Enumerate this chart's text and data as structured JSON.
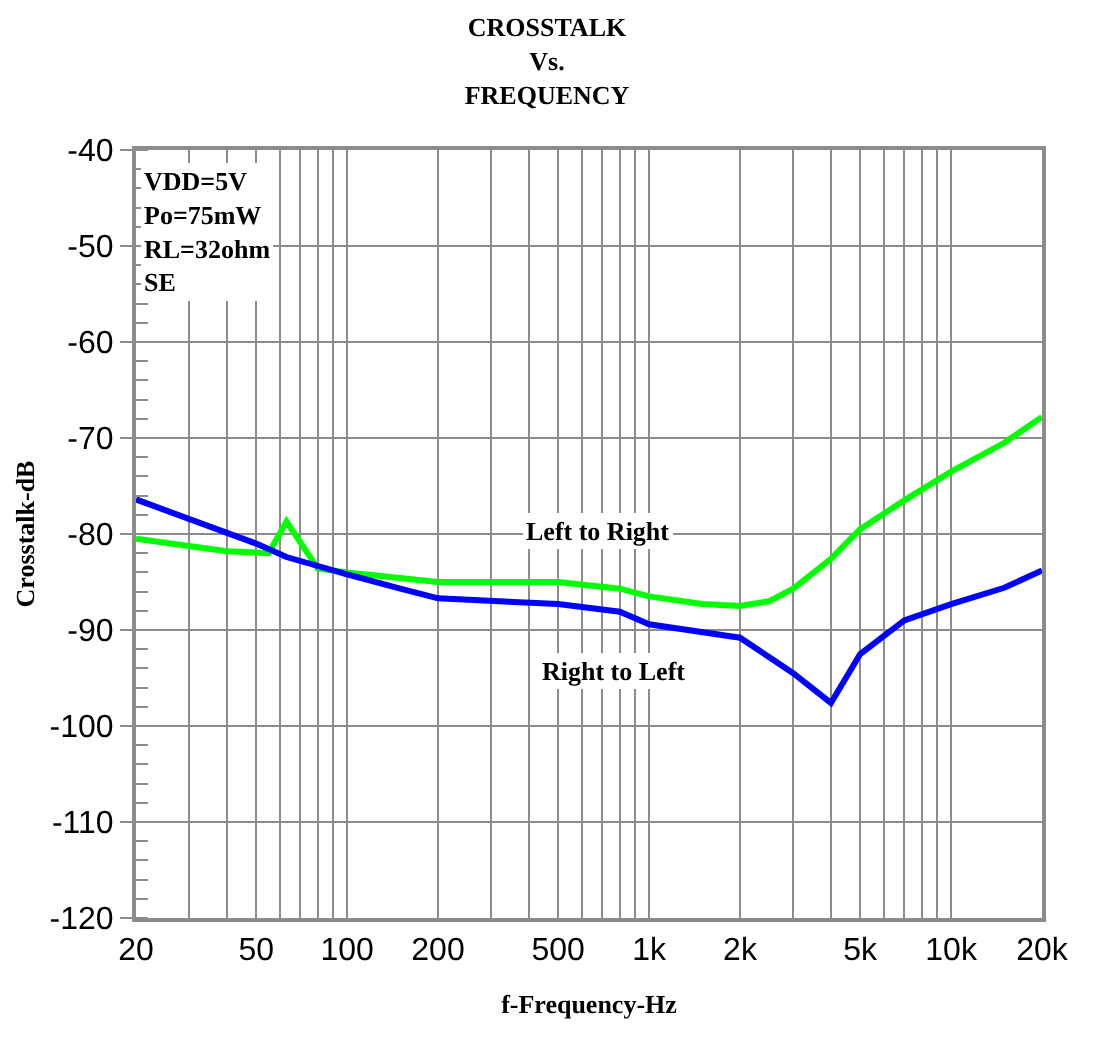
{
  "chart_data": {
    "type": "line",
    "title": "CROSSTALK\nVs.\nFREQUENCY",
    "xlabel": "f-Frequency-Hz",
    "ylabel": "Crosstalk-dB",
    "log": "x",
    "grid": true,
    "marker": "none",
    "line_style": "solid",
    "xlim": [
      20,
      20000
    ],
    "ylim": [
      -120,
      -40
    ],
    "xticks": [
      20,
      {
        "value": 30,
        "label": null
      },
      {
        "value": 40,
        "label": null
      },
      50,
      {
        "value": 60,
        "label": null
      },
      {
        "value": 70,
        "label": null
      },
      {
        "value": 80,
        "label": null
      },
      {
        "value": 90,
        "label": null
      },
      100,
      200,
      {
        "value": 300,
        "label": null
      },
      {
        "value": 400,
        "label": null
      },
      500,
      {
        "value": 600,
        "label": null
      },
      {
        "value": 700,
        "label": null
      },
      {
        "value": 800,
        "label": null
      },
      {
        "value": 900,
        "label": null
      },
      {
        "value": 1000,
        "label": "1k"
      },
      {
        "value": 2000,
        "label": "2k"
      },
      {
        "value": 3000,
        "label": null
      },
      {
        "value": 4000,
        "label": null
      },
      {
        "value": 5000,
        "label": "5k"
      },
      {
        "value": 6000,
        "label": null
      },
      {
        "value": 7000,
        "label": null
      },
      {
        "value": 8000,
        "label": null
      },
      {
        "value": 9000,
        "label": null
      },
      {
        "value": 10000,
        "label": "10k"
      },
      {
        "value": 20000,
        "label": "20k"
      }
    ],
    "yticks": [
      -40,
      -50,
      -60,
      -70,
      -80,
      -90,
      -100,
      -110,
      -120
    ],
    "series": [
      {
        "color": "#00ff00",
        "x": [
          20,
          40,
          55,
          63,
          80,
          100,
          200,
          500,
          800,
          1000,
          1500,
          2000,
          2500,
          3000,
          4000,
          5000,
          7000,
          10000,
          15000,
          20000
        ],
        "values": [
          -80.5,
          -81.8,
          -82,
          -78.7,
          -83.6,
          -84,
          -85,
          -85,
          -85.7,
          -86.5,
          -87.3,
          -87.5,
          -87,
          -85.7,
          -82.6,
          -79.5,
          -76.5,
          -73.5,
          -70.5,
          -67.8
        ]
      },
      {
        "color": "#0000ff",
        "x": [
          20,
          50,
          63,
          100,
          150,
          200,
          500,
          800,
          1000,
          2000,
          3000,
          4000,
          5000,
          7000,
          10000,
          15000,
          20000
        ],
        "values": [
          -76.4,
          -81,
          -82.4,
          -84.2,
          -85.7,
          -86.7,
          -87.3,
          -88.1,
          -89.4,
          -90.8,
          -94.5,
          -97.6,
          -92.5,
          -89,
          -87.3,
          -85.6,
          -83.8
        ]
      }
    ],
    "annotations": [
      "VDD=5V\nPo=75mW\nRL=32ohm\nSE",
      "Left to Right",
      "Right to Left"
    ]
  }
}
